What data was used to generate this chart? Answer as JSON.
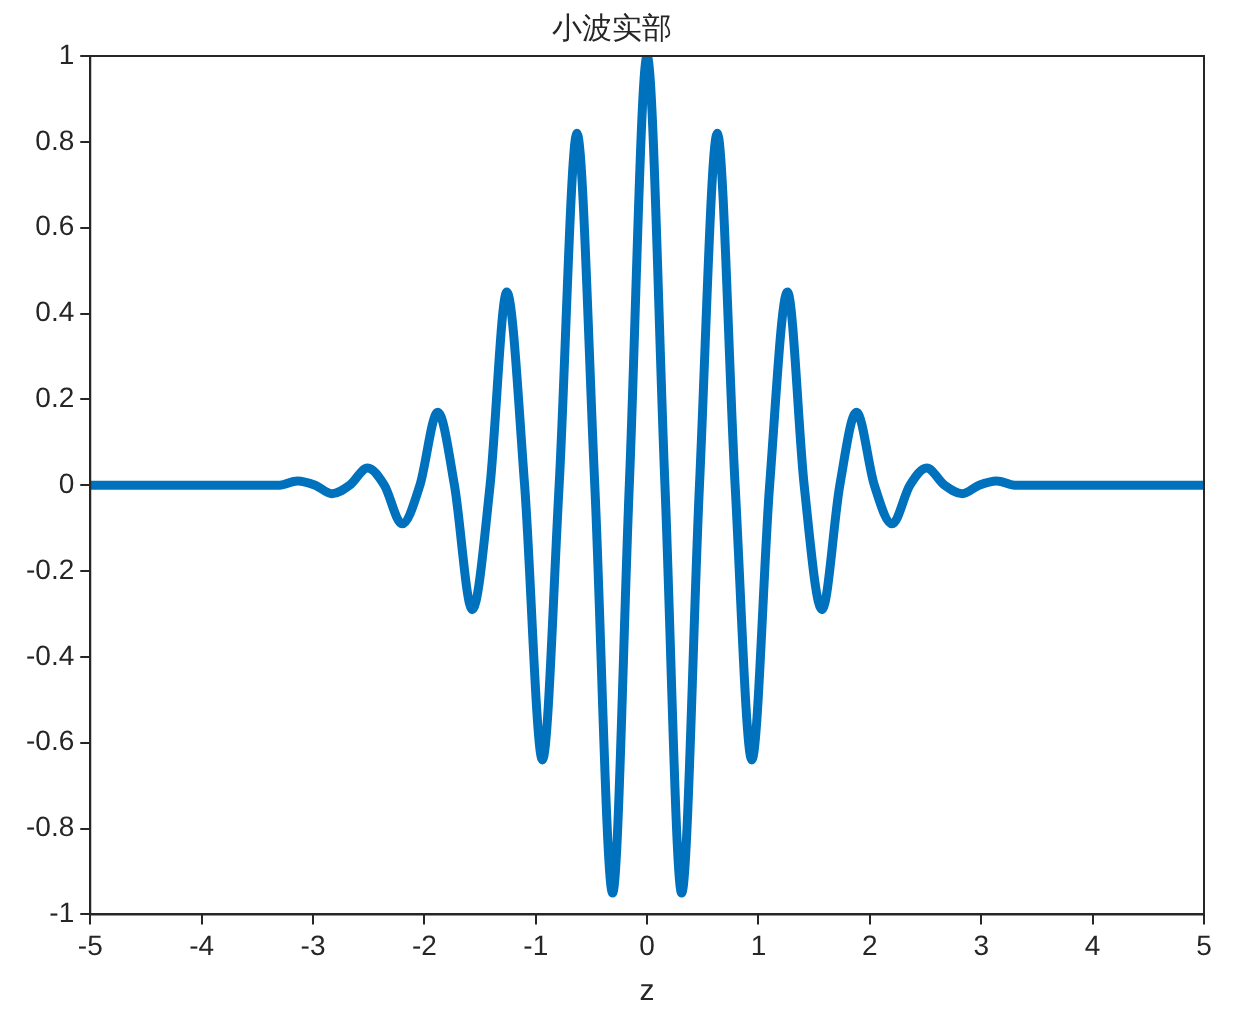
{
  "chart_data": {
    "type": "line",
    "title": "小波实部",
    "xlabel": "z",
    "x": [
      -5,
      -4,
      -3.3,
      -3.14,
      -2.98,
      -2.83,
      -2.67,
      -2.51,
      -2.36,
      -2.2,
      -2.04,
      -1.88,
      -1.73,
      -1.57,
      -1.41,
      -1.26,
      -1.1,
      -0.94,
      -0.79,
      -0.63,
      -0.47,
      -0.31,
      -0.16,
      0,
      0.16,
      0.31,
      0.47,
      0.63,
      0.79,
      0.94,
      1.1,
      1.26,
      1.41,
      1.57,
      1.73,
      1.88,
      2.04,
      2.2,
      2.36,
      2.51,
      2.67,
      2.83,
      2.98,
      3.14,
      3.3,
      4,
      5
    ],
    "series": [
      {
        "color": "#0072bd",
        "values": [
          0,
          0,
          0,
          0.01,
          0,
          -0.02,
          0,
          0.04,
          0,
          -0.09,
          0,
          0.17,
          0,
          -0.29,
          0,
          0.45,
          0,
          -0.64,
          0,
          0.82,
          0,
          -0.95,
          0,
          1,
          0,
          -0.95,
          0,
          0.82,
          0,
          -0.64,
          0,
          0.45,
          0,
          -0.29,
          0,
          0.17,
          0,
          -0.09,
          0,
          0.04,
          0,
          -0.02,
          0,
          0.01,
          0,
          0,
          0
        ]
      }
    ],
    "xlim": [
      -5,
      5
    ],
    "xticks": [
      -5,
      -4,
      -3,
      -2,
      -1,
      0,
      1,
      2,
      3,
      4,
      5
    ],
    "ylim": [
      -1,
      1
    ],
    "yticks": [
      -1,
      -0.8,
      -0.6,
      -0.4,
      -0.2,
      0,
      0.2,
      0.4,
      0.6,
      0.8,
      1
    ],
    "grid": false,
    "legend": false,
    "marker": "none",
    "line_style": "solid"
  }
}
